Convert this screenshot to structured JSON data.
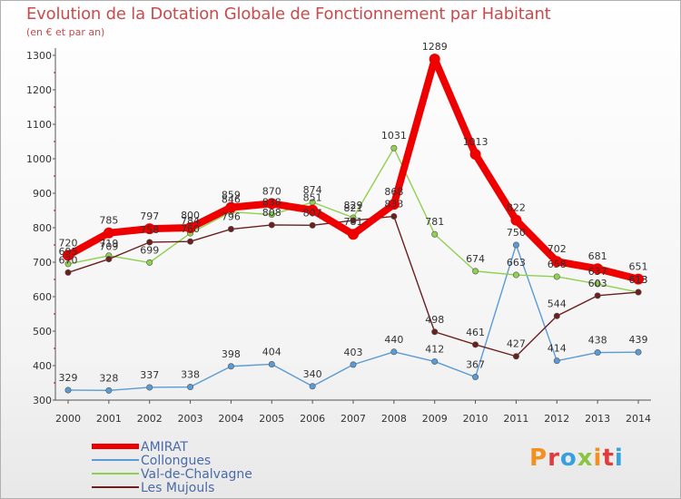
{
  "header": {
    "title": "Evolution de la Dotation Globale de Fonctionnement par Habitant",
    "subtitle": "(en € et par an)"
  },
  "logo": {
    "text": "Proxiti",
    "colors": [
      "#f29020",
      "#e23b3b",
      "#39a0e0",
      "#8bc43f",
      "#f29020",
      "#e23b3b",
      "#39a0e0"
    ]
  },
  "chart_data": {
    "type": "line",
    "x": [
      "2000",
      "2001",
      "2002",
      "2003",
      "2004",
      "2005",
      "2006",
      "2007",
      "2008",
      "2009",
      "2010",
      "2011",
      "2012",
      "2013",
      "2014"
    ],
    "ylim": [
      300,
      1300
    ],
    "yticks": [
      300,
      400,
      500,
      600,
      700,
      800,
      900,
      1000,
      1100,
      1200,
      1300
    ],
    "grid": false,
    "legend_position": "bottom-left",
    "series": [
      {
        "name": "AMIRAT",
        "color": "#ee0000",
        "values": [
          720,
          785,
          797,
          800,
          859,
          870,
          851,
          781,
          868,
          1289,
          1013,
          822,
          702,
          681,
          651
        ]
      },
      {
        "name": "Collongues",
        "color": "#5b9bd5",
        "values": [
          329,
          328,
          337,
          338,
          398,
          404,
          340,
          403,
          440,
          412,
          367,
          750,
          414,
          438,
          439
        ]
      },
      {
        "name": "Val-de-Chalvagne",
        "color": "#90d050",
        "values": [
          695,
          719,
          699,
          784,
          846,
          838,
          874,
          829,
          1031,
          781,
          674,
          663,
          658,
          637,
          613
        ]
      },
      {
        "name": "Les Mujouls",
        "color": "#6b1f1f",
        "values": [
          670,
          709,
          758,
          760,
          796,
          808,
          807,
          821,
          833,
          498,
          461,
          427,
          544,
          603,
          613
        ]
      }
    ]
  }
}
